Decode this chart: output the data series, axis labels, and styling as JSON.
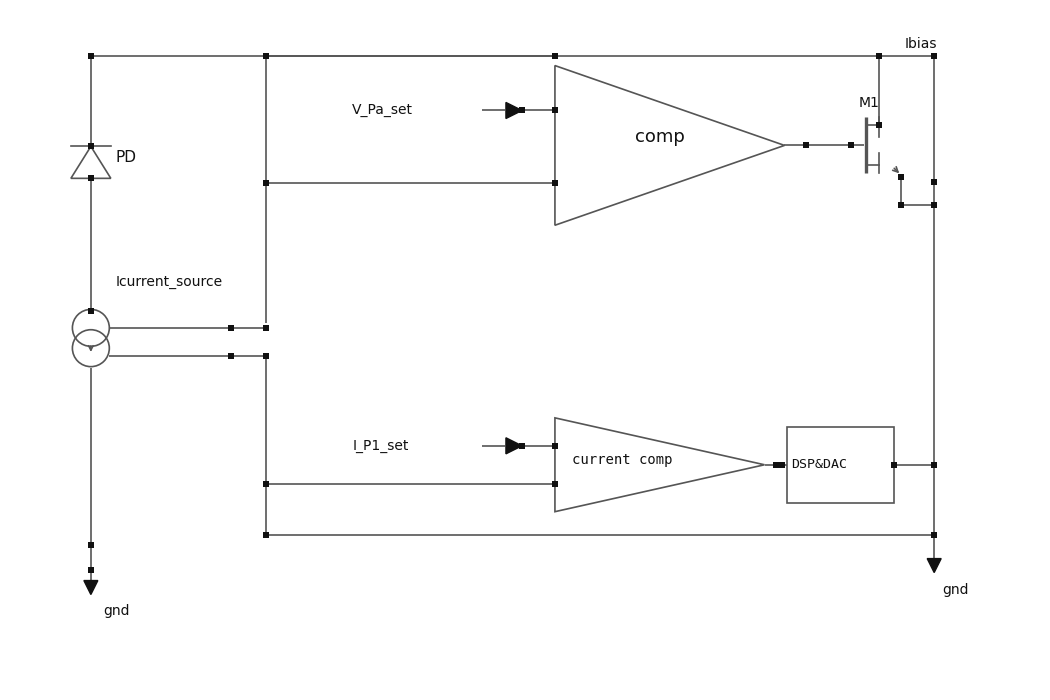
{
  "bg": "#ffffff",
  "lc": "#555555",
  "nc": "#111111",
  "lw": 1.2,
  "ns": 5.0,
  "figsize": [
    10.5,
    7.0
  ],
  "dpi": 100,
  "xlim": [
    0,
    10.5
  ],
  "ylim": [
    0,
    7.0
  ]
}
